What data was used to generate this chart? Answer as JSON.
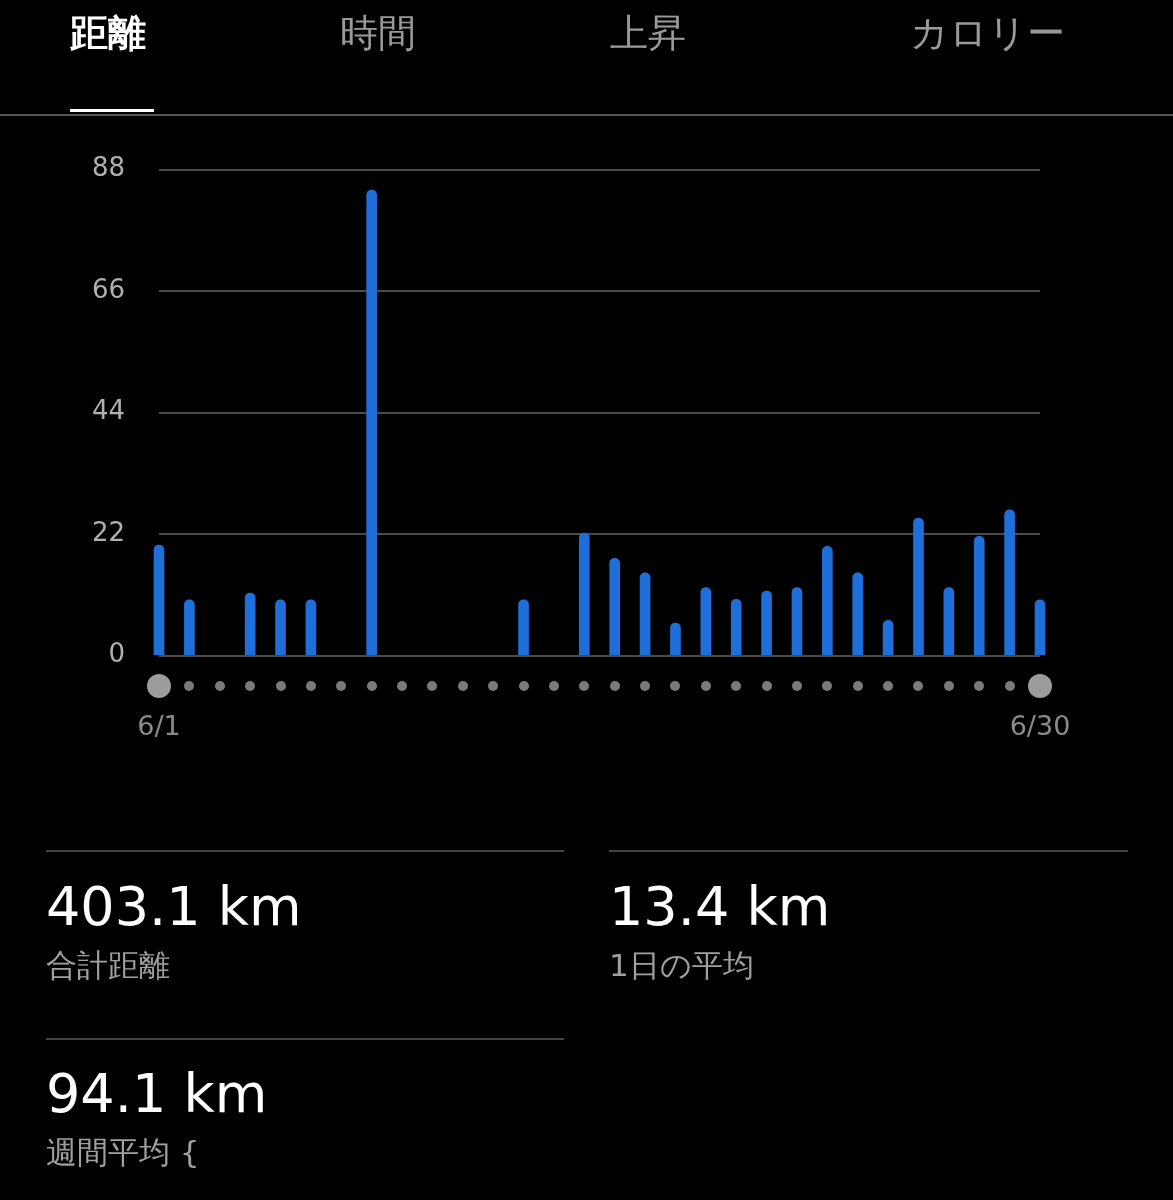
{
  "chart_data": {
    "type": "bar",
    "categories": [
      "6/1",
      null,
      null,
      null,
      null,
      null,
      null,
      null,
      null,
      null,
      null,
      null,
      null,
      null,
      null,
      null,
      null,
      null,
      null,
      null,
      null,
      null,
      null,
      null,
      null,
      null,
      null,
      null,
      null,
      "6/30"
    ],
    "values": [
      20.0,
      10.1,
      null,
      11.3,
      10.1,
      10.1,
      null,
      84.3,
      null,
      null,
      null,
      null,
      10.1,
      null,
      22.2,
      17.6,
      15.0,
      5.9,
      12.3,
      10.2,
      11.7,
      12.3,
      19.8,
      15.0,
      6.4,
      24.9,
      12.3,
      21.6,
      26.4,
      10.1
    ],
    "color": "#1e6fd9",
    "ylim": [
      0,
      88
    ],
    "yticks": [
      0,
      22,
      44,
      66,
      88
    ],
    "grid": "y",
    "legend": false,
    "annotations": [
      "距離",
      "時間",
      "上昇",
      "カロリー",
      "403.1 km",
      "合計距離",
      "13.4 km",
      "1日の平均",
      "94.1 km",
      "週間平均 {"
    ]
  }
}
